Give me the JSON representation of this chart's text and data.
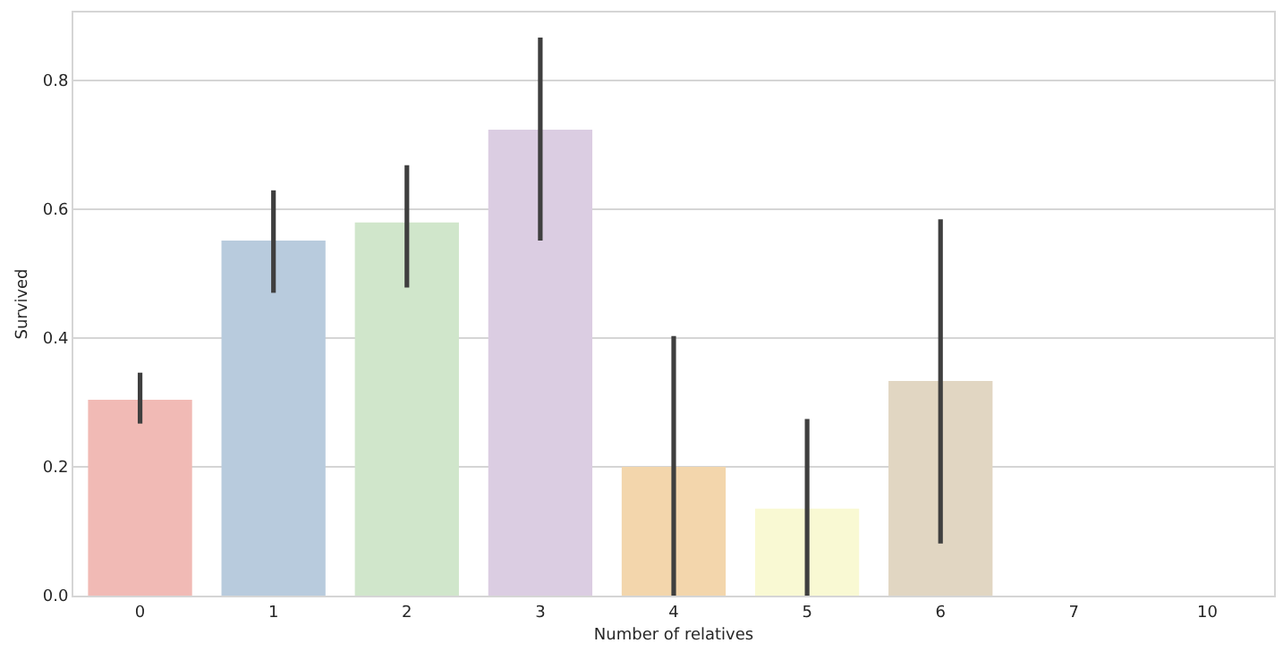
{
  "chart_data": {
    "type": "bar",
    "xlabel": "Number of relatives",
    "ylabel": "Survived",
    "categories": [
      "0",
      "1",
      "2",
      "3",
      "4",
      "5",
      "6",
      "7",
      "10"
    ],
    "values": [
      0.304,
      0.551,
      0.579,
      0.723,
      0.2,
      0.135,
      0.333,
      0,
      0
    ],
    "errors": [
      [
        0.267,
        0.346
      ],
      [
        0.47,
        0.629
      ],
      [
        0.478,
        0.668
      ],
      [
        0.551,
        0.866
      ],
      [
        0,
        0.403
      ],
      [
        0,
        0.274
      ],
      [
        0.081,
        0.584
      ],
      null,
      null
    ],
    "colors": [
      "#f1bab5",
      "#b8cbdd",
      "#d0e6cb",
      "#dbcde2",
      "#f3d6ac",
      "#f9f9d3",
      "#e1d6c2",
      "#f5dbe7",
      "#f2f2f2"
    ],
    "ylim": [
      0,
      0.905
    ],
    "yticks": [
      {
        "value": 0,
        "label": "0.0"
      },
      0.2,
      0.4,
      0.6,
      0.8
    ],
    "grid": "y"
  }
}
